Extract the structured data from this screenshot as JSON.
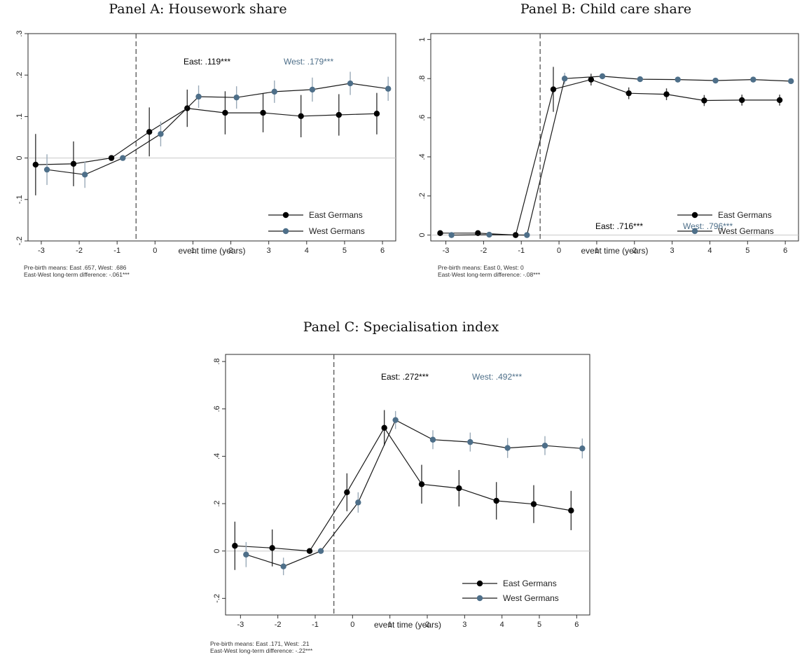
{
  "chart_data": [
    {
      "type": "line",
      "id": "A",
      "title": "Panel A: Housework share",
      "xlabel": "event time (years)",
      "ylabel": "",
      "xlim": [
        -3.35,
        6.35
      ],
      "ylim": [
        -0.2,
        0.3
      ],
      "xticks": [
        -3,
        -2,
        -1,
        0,
        1,
        2,
        3,
        4,
        5,
        6
      ],
      "yticks": [
        -0.2,
        -0.1,
        0,
        0.1,
        0.2,
        0.3
      ],
      "ytick_labels": [
        "-.2",
        "-.1",
        "0",
        ".1",
        ".2",
        ".3"
      ],
      "event_line_x": -0.5,
      "series": [
        {
          "name": "East Germans",
          "color": "#000000",
          "points": [
            {
              "x": -3.15,
              "y": -0.016,
              "lo": -0.09,
              "hi": 0.058
            },
            {
              "x": -2.15,
              "y": -0.014,
              "lo": -0.068,
              "hi": 0.04
            },
            {
              "x": -1.15,
              "y": 0.0,
              "lo": 0.0,
              "hi": 0.0
            },
            {
              "x": -0.15,
              "y": 0.063,
              "lo": 0.004,
              "hi": 0.122
            },
            {
              "x": 0.85,
              "y": 0.12,
              "lo": 0.075,
              "hi": 0.165
            },
            {
              "x": 1.85,
              "y": 0.109,
              "lo": 0.057,
              "hi": 0.161
            },
            {
              "x": 2.85,
              "y": 0.109,
              "lo": 0.062,
              "hi": 0.156
            },
            {
              "x": 3.85,
              "y": 0.101,
              "lo": 0.05,
              "hi": 0.152
            },
            {
              "x": 4.85,
              "y": 0.104,
              "lo": 0.054,
              "hi": 0.154
            },
            {
              "x": 5.85,
              "y": 0.107,
              "lo": 0.057,
              "hi": 0.157
            }
          ]
        },
        {
          "name": "West Germans",
          "color": "#4e6f89",
          "points": [
            {
              "x": -2.85,
              "y": -0.028,
              "lo": -0.065,
              "hi": 0.009
            },
            {
              "x": -1.85,
              "y": -0.04,
              "lo": -0.072,
              "hi": -0.008
            },
            {
              "x": -0.85,
              "y": 0.0,
              "lo": 0.0,
              "hi": 0.0
            },
            {
              "x": 0.15,
              "y": 0.058,
              "lo": 0.028,
              "hi": 0.088
            },
            {
              "x": 1.15,
              "y": 0.148,
              "lo": 0.121,
              "hi": 0.175
            },
            {
              "x": 2.15,
              "y": 0.146,
              "lo": 0.119,
              "hi": 0.173
            },
            {
              "x": 3.15,
              "y": 0.16,
              "lo": 0.133,
              "hi": 0.187
            },
            {
              "x": 4.15,
              "y": 0.165,
              "lo": 0.136,
              "hi": 0.194
            },
            {
              "x": 5.15,
              "y": 0.18,
              "lo": 0.152,
              "hi": 0.208
            },
            {
              "x": 6.15,
              "y": 0.167,
              "lo": 0.138,
              "hi": 0.196
            }
          ]
        }
      ],
      "annotations": {
        "east": "East: .119***",
        "west": "West: .179***"
      },
      "legend_position": "bottom-right",
      "footnotes": [
        "Pre-birth means: East .657, West: .686",
        "East-West long-term difference: -.061***"
      ]
    },
    {
      "type": "line",
      "id": "B",
      "title": "Panel B: Child care share",
      "xlabel": "event time (years)",
      "ylabel": "",
      "xlim": [
        -3.4,
        6.35
      ],
      "ylim": [
        -0.03,
        1.03
      ],
      "xticks": [
        -3,
        -2,
        -1,
        0,
        1,
        2,
        3,
        4,
        5,
        6
      ],
      "yticks": [
        0,
        0.2,
        0.4,
        0.6,
        0.8,
        1
      ],
      "ytick_labels": [
        "0",
        ".2",
        ".4",
        ".6",
        ".8",
        "1"
      ],
      "event_line_x": -0.5,
      "series": [
        {
          "name": "East Germans",
          "color": "#000000",
          "points": [
            {
              "x": -3.15,
              "y": 0.01,
              "lo": 0.0,
              "hi": 0.02
            },
            {
              "x": -2.15,
              "y": 0.01,
              "lo": 0.0,
              "hi": 0.02
            },
            {
              "x": -1.15,
              "y": 0.0,
              "lo": 0.0,
              "hi": 0.0
            },
            {
              "x": -0.15,
              "y": 0.745,
              "lo": 0.63,
              "hi": 0.86
            },
            {
              "x": 0.85,
              "y": 0.795,
              "lo": 0.765,
              "hi": 0.825
            },
            {
              "x": 1.85,
              "y": 0.725,
              "lo": 0.695,
              "hi": 0.755
            },
            {
              "x": 2.85,
              "y": 0.72,
              "lo": 0.69,
              "hi": 0.75
            },
            {
              "x": 3.85,
              "y": 0.688,
              "lo": 0.66,
              "hi": 0.716
            },
            {
              "x": 4.85,
              "y": 0.69,
              "lo": 0.662,
              "hi": 0.718
            },
            {
              "x": 5.85,
              "y": 0.69,
              "lo": 0.662,
              "hi": 0.718
            }
          ]
        },
        {
          "name": "West Germans",
          "color": "#4e6f89",
          "points": [
            {
              "x": -2.85,
              "y": 0.0,
              "lo": -0.005,
              "hi": 0.005
            },
            {
              "x": -1.85,
              "y": 0.002,
              "lo": -0.003,
              "hi": 0.007
            },
            {
              "x": -0.85,
              "y": 0.0,
              "lo": 0.0,
              "hi": 0.0
            },
            {
              "x": 0.15,
              "y": 0.8,
              "lo": 0.77,
              "hi": 0.83
            },
            {
              "x": 1.15,
              "y": 0.812,
              "lo": 0.797,
              "hi": 0.827
            },
            {
              "x": 2.15,
              "y": 0.797,
              "lo": 0.785,
              "hi": 0.809
            },
            {
              "x": 3.15,
              "y": 0.795,
              "lo": 0.783,
              "hi": 0.807
            },
            {
              "x": 4.15,
              "y": 0.79,
              "lo": 0.778,
              "hi": 0.802
            },
            {
              "x": 5.15,
              "y": 0.795,
              "lo": 0.783,
              "hi": 0.807
            },
            {
              "x": 6.15,
              "y": 0.787,
              "lo": 0.775,
              "hi": 0.799
            }
          ]
        }
      ],
      "annotations": {
        "east": "East: .716***",
        "west": "West: .796***"
      },
      "legend_position": "bottom-right",
      "footnotes": [
        "Pre-birth means: East 0, West: 0",
        "East-West long-term difference: -.08***"
      ]
    },
    {
      "type": "line",
      "id": "C",
      "title": "Panel C: Specialisation index",
      "xlabel": "event time (years)",
      "ylabel": "",
      "xlim": [
        -3.4,
        6.35
      ],
      "ylim": [
        -0.27,
        0.83
      ],
      "xticks": [
        -3,
        -2,
        -1,
        0,
        1,
        2,
        3,
        4,
        5,
        6
      ],
      "yticks": [
        -0.2,
        0,
        0.2,
        0.4,
        0.6,
        0.8
      ],
      "ytick_labels": [
        "-.2",
        "0",
        ".2",
        ".4",
        ".6",
        ".8"
      ],
      "event_line_x": -0.5,
      "series": [
        {
          "name": "East Germans",
          "color": "#000000",
          "points": [
            {
              "x": -3.15,
              "y": 0.022,
              "lo": -0.08,
              "hi": 0.124
            },
            {
              "x": -2.15,
              "y": 0.013,
              "lo": -0.065,
              "hi": 0.091
            },
            {
              "x": -1.15,
              "y": 0.0,
              "lo": 0.0,
              "hi": 0.0
            },
            {
              "x": -0.15,
              "y": 0.248,
              "lo": 0.168,
              "hi": 0.328
            },
            {
              "x": 0.85,
              "y": 0.52,
              "lo": 0.445,
              "hi": 0.595
            },
            {
              "x": 1.85,
              "y": 0.282,
              "lo": 0.2,
              "hi": 0.364
            },
            {
              "x": 2.85,
              "y": 0.265,
              "lo": 0.188,
              "hi": 0.342
            },
            {
              "x": 3.85,
              "y": 0.212,
              "lo": 0.133,
              "hi": 0.291
            },
            {
              "x": 4.85,
              "y": 0.198,
              "lo": 0.118,
              "hi": 0.278
            },
            {
              "x": 5.85,
              "y": 0.171,
              "lo": 0.088,
              "hi": 0.254
            }
          ]
        },
        {
          "name": "West Germans",
          "color": "#4e6f89",
          "points": [
            {
              "x": -2.85,
              "y": -0.015,
              "lo": -0.068,
              "hi": 0.038
            },
            {
              "x": -1.85,
              "y": -0.065,
              "lo": -0.102,
              "hi": -0.028
            },
            {
              "x": -0.85,
              "y": 0.0,
              "lo": 0.0,
              "hi": 0.0
            },
            {
              "x": 0.15,
              "y": 0.205,
              "lo": 0.162,
              "hi": 0.248
            },
            {
              "x": 1.15,
              "y": 0.553,
              "lo": 0.515,
              "hi": 0.591
            },
            {
              "x": 2.15,
              "y": 0.47,
              "lo": 0.43,
              "hi": 0.51
            },
            {
              "x": 3.15,
              "y": 0.46,
              "lo": 0.42,
              "hi": 0.5
            },
            {
              "x": 4.15,
              "y": 0.435,
              "lo": 0.393,
              "hi": 0.477
            },
            {
              "x": 5.15,
              "y": 0.445,
              "lo": 0.405,
              "hi": 0.485
            },
            {
              "x": 6.15,
              "y": 0.433,
              "lo": 0.391,
              "hi": 0.475
            }
          ]
        }
      ],
      "annotations": {
        "east": "East: .272***",
        "west": "West: .492***"
      },
      "legend_position": "bottom-right",
      "footnotes": [
        "Pre-birth means: East .171, West: .21",
        "East-West long-term difference: -.22***"
      ]
    }
  ],
  "colors": {
    "east": "#000000",
    "west": "#4e6f89",
    "east_ci": "#3a3a3a",
    "west_ci": "#9aaab8",
    "zero_line": "#c8c8c8"
  }
}
